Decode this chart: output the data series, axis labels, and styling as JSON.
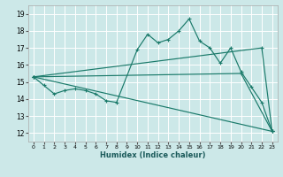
{
  "xlabel": "Humidex (Indice chaleur)",
  "bg_color": "#cce8e8",
  "grid_color": "#ffffff",
  "line_color": "#1a7a6a",
  "xlim": [
    -0.5,
    23.5
  ],
  "ylim": [
    11.5,
    19.5
  ],
  "xticks": [
    0,
    1,
    2,
    3,
    4,
    5,
    6,
    7,
    8,
    9,
    10,
    11,
    12,
    13,
    14,
    15,
    16,
    17,
    18,
    19,
    20,
    21,
    22,
    23
  ],
  "yticks": [
    12,
    13,
    14,
    15,
    16,
    17,
    18,
    19
  ],
  "series": [
    {
      "x": [
        0,
        1,
        2,
        3,
        4,
        5,
        6,
        7,
        8,
        10,
        11,
        12,
        13,
        14,
        15,
        16,
        17,
        18,
        19,
        20,
        21,
        22,
        23
      ],
      "y": [
        15.3,
        14.8,
        14.3,
        14.5,
        14.6,
        14.5,
        14.3,
        13.9,
        13.8,
        16.9,
        17.8,
        17.3,
        17.5,
        18.0,
        18.7,
        17.4,
        17.0,
        16.1,
        17.0,
        15.6,
        14.7,
        13.8,
        12.1
      ]
    },
    {
      "x": [
        0,
        22,
        23
      ],
      "y": [
        15.3,
        17.0,
        12.1
      ]
    },
    {
      "x": [
        0,
        20,
        23
      ],
      "y": [
        15.3,
        15.5,
        12.1
      ]
    },
    {
      "x": [
        0,
        23
      ],
      "y": [
        15.3,
        12.1
      ]
    }
  ]
}
